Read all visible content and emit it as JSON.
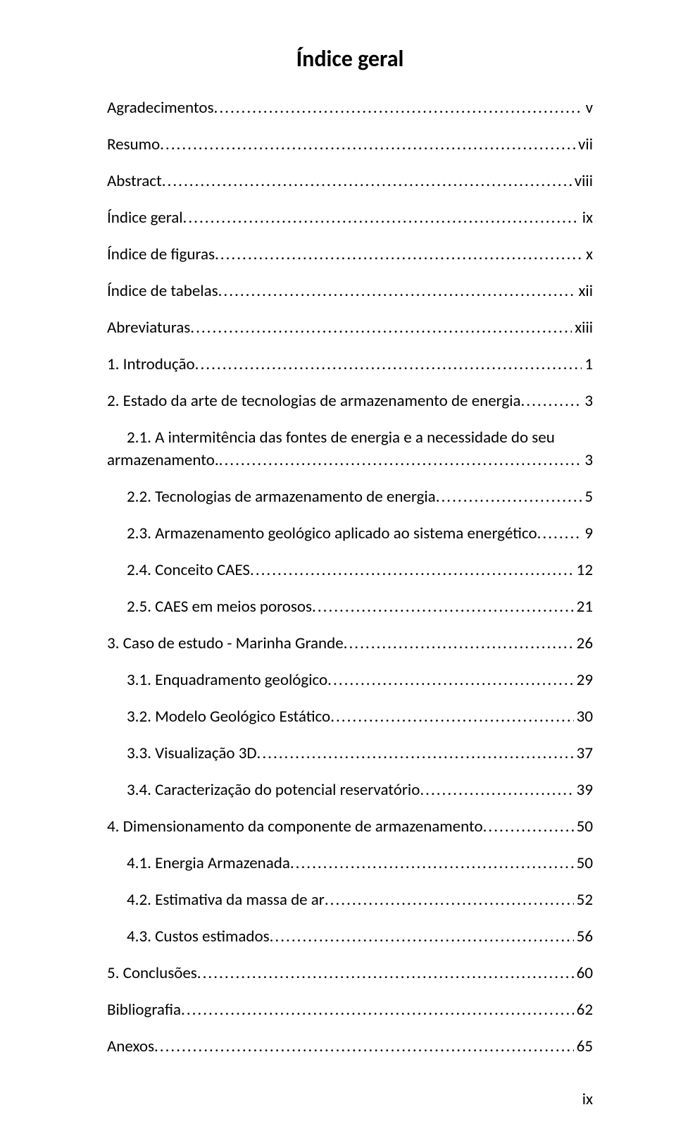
{
  "title": "Índice geral",
  "entries": [
    {
      "level": "lv0",
      "label": "Agradecimentos",
      "page": "v"
    },
    {
      "level": "lv0",
      "label": "Resumo",
      "page": "vii"
    },
    {
      "level": "lv0",
      "label": "Abstract",
      "page": "viii"
    },
    {
      "level": "lv0",
      "label": "Índice geral",
      "page": "ix"
    },
    {
      "level": "lv0",
      "label": "Índice de figuras",
      "page": "x"
    },
    {
      "level": "lv0",
      "label": "Índice de tabelas",
      "page": "xii"
    },
    {
      "level": "lv0",
      "label": "Abreviaturas",
      "page": "xiii"
    },
    {
      "level": "lv1",
      "label": "1.   Introdução",
      "page": "1"
    },
    {
      "level": "lv1",
      "label": "2.   Estado da arte de tecnologias de armazenamento de energia",
      "page": "3"
    },
    {
      "level": "lv2",
      "label": "2.1.   A intermitência das fontes de energia e a necessidade do seu",
      "wrap": true,
      "wrap_text": "armazenamento.",
      "page": "3"
    },
    {
      "level": "lv2",
      "label": "2.2.   Tecnologias de armazenamento de energia",
      "page": "5"
    },
    {
      "level": "lv2",
      "label": "2.3.   Armazenamento geológico aplicado ao sistema energético",
      "page": "9"
    },
    {
      "level": "lv2",
      "label": "2.4.   Conceito CAES",
      "page": "12"
    },
    {
      "level": "lv2",
      "label": "2.5.   CAES em meios porosos",
      "page": "21"
    },
    {
      "level": "lv1",
      "label": "3.   Caso de estudo - Marinha Grande",
      "page": "26"
    },
    {
      "level": "lv2",
      "label": "3.1.   Enquadramento geológico",
      "page": "29"
    },
    {
      "level": "lv2",
      "label": "3.2.   Modelo Geológico Estático",
      "page": "30"
    },
    {
      "level": "lv2",
      "label": "3.3.   Visualização 3D",
      "page": "37"
    },
    {
      "level": "lv2",
      "label": "3.4.   Caracterização do potencial reservatório",
      "page": "39"
    },
    {
      "level": "lv1",
      "label": "4.   Dimensionamento da componente de armazenamento",
      "page": "50"
    },
    {
      "level": "lv2",
      "label": "4.1.   Energia Armazenada",
      "page": "50"
    },
    {
      "level": "lv2",
      "label": "4.2.   Estimativa da massa de ar",
      "page": "52"
    },
    {
      "level": "lv2",
      "label": "4.3.   Custos estimados",
      "page": "56"
    },
    {
      "level": "lv1",
      "label": "5.   Conclusões",
      "page": "60"
    },
    {
      "level": "lv0",
      "label": "Bibliografia",
      "page": "62"
    },
    {
      "level": "lv0",
      "label": "Anexos",
      "page": "65"
    }
  ],
  "page_number": "ix",
  "colors": {
    "text": "#000000",
    "background": "#ffffff"
  },
  "typography": {
    "title_fontsize": 32,
    "body_fontsize": 23,
    "title_fontweight": 700,
    "body_fontweight": 400,
    "font_family": "Calibri"
  }
}
